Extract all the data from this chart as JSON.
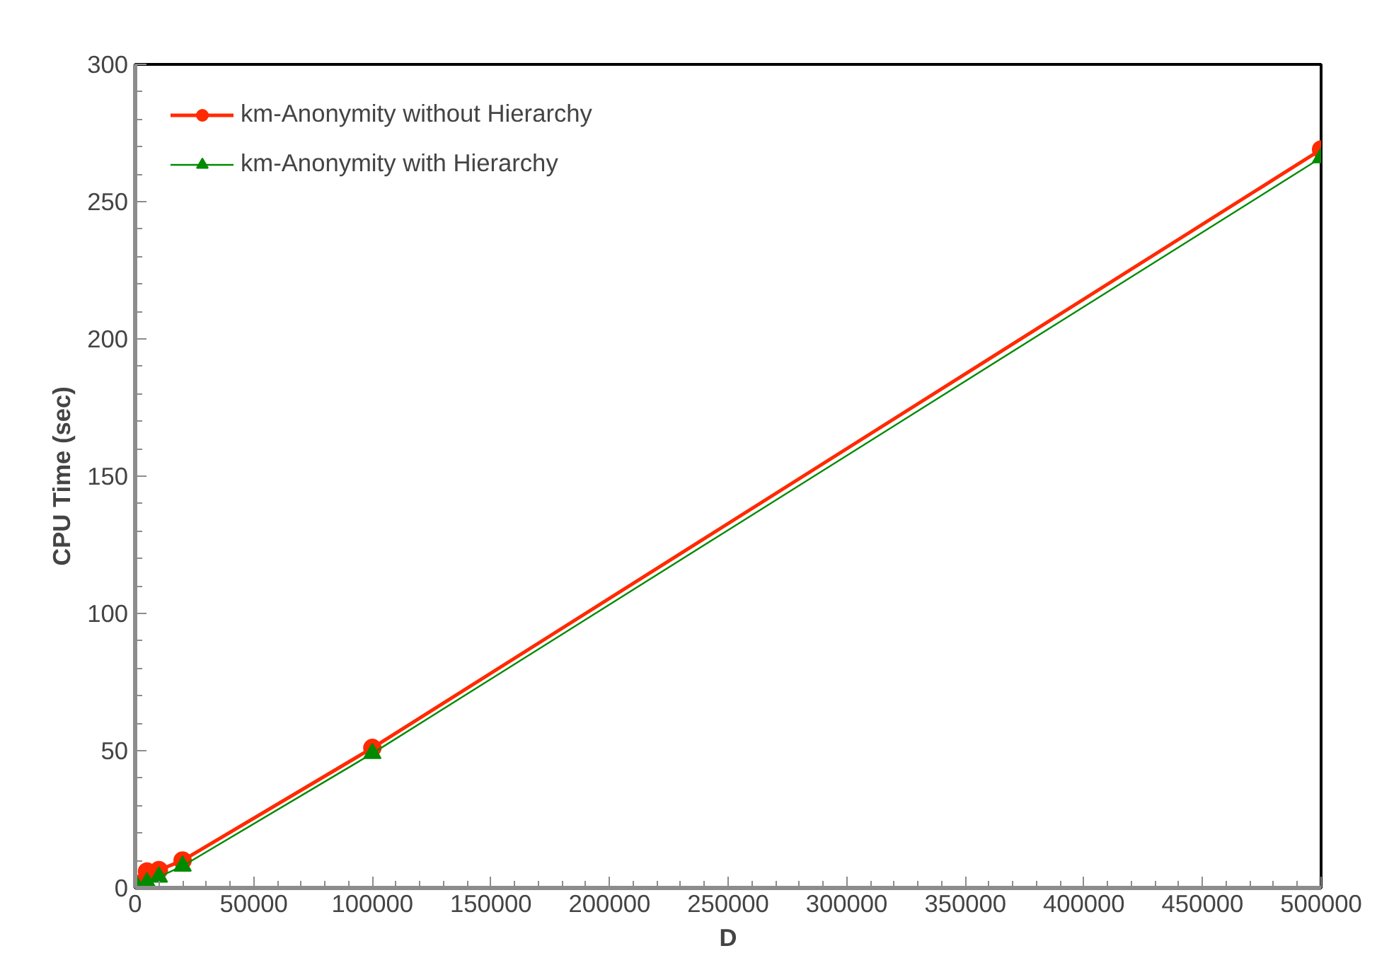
{
  "chart_data": {
    "type": "line",
    "xlabel": "D",
    "ylabel": "CPU Time (sec)",
    "x": [
      1000,
      5000,
      10000,
      20000,
      100000,
      500000
    ],
    "series": [
      {
        "name": "km-Anonymity without Hierarchy",
        "color": "#ff2a00",
        "marker": "circle",
        "values": [
          1.5,
          6,
          6.5,
          10,
          51,
          269
        ]
      },
      {
        "name": "km-Anonymity with Hierarchy",
        "color": "#008a00",
        "marker": "triangle",
        "values": [
          0.2,
          2,
          4,
          8,
          49,
          266
        ]
      }
    ],
    "xlim": [
      0,
      500000
    ],
    "xticks": [
      0,
      50000,
      100000,
      150000,
      200000,
      250000,
      300000,
      350000,
      400000,
      450000,
      500000
    ],
    "ylim": [
      0,
      300
    ],
    "yticks": [
      0,
      50,
      100,
      150,
      200,
      250,
      300
    ],
    "grid": false,
    "legend": "top left"
  }
}
